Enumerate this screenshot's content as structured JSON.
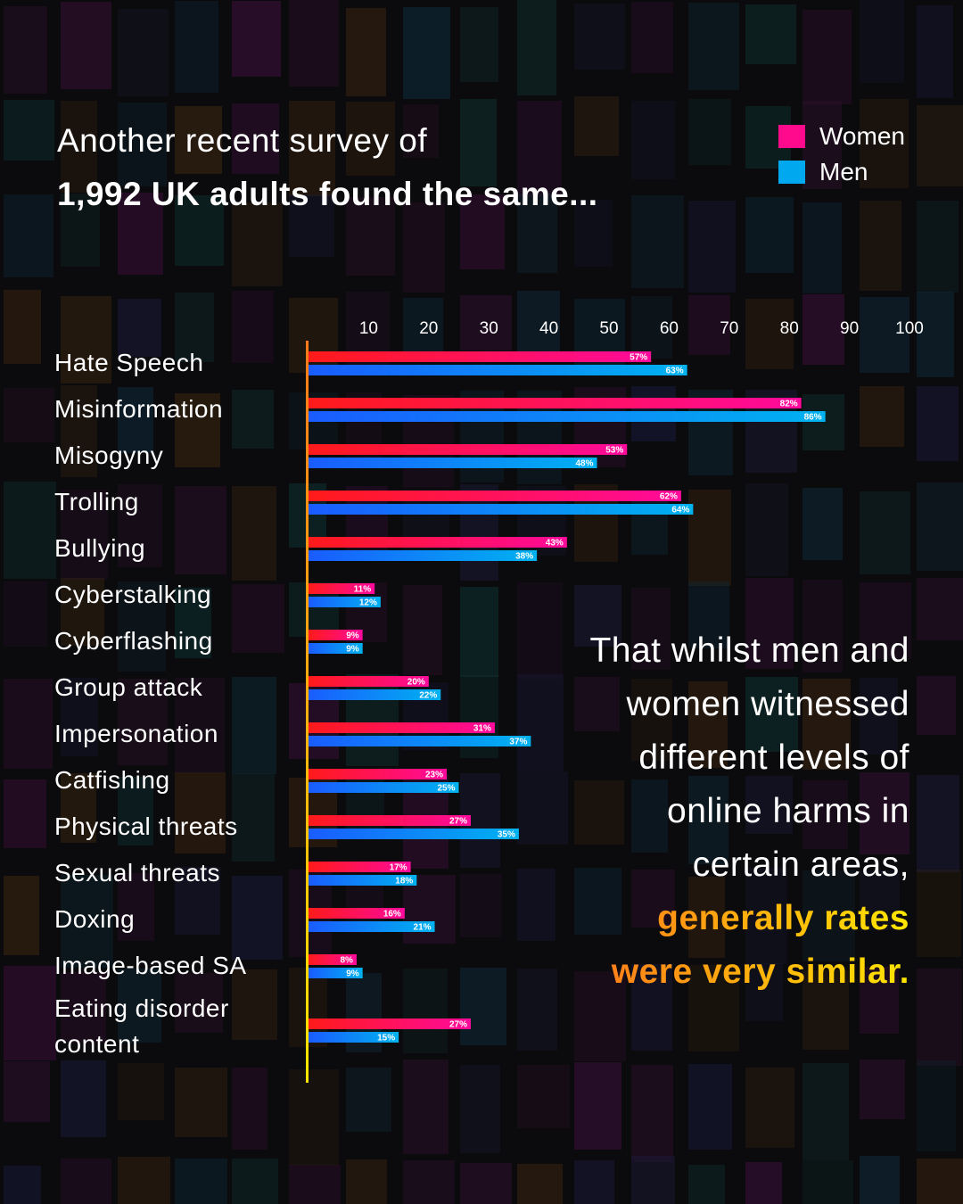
{
  "headline": {
    "line1": "Another recent survey of",
    "line2": "1,992 UK adults found the same..."
  },
  "legend": [
    {
      "label": "Women",
      "color": "#ff0a8c"
    },
    {
      "label": "Men",
      "color": "#00a8f0"
    }
  ],
  "callout": {
    "lines": [
      "That whilst men and",
      "women witnessed",
      "different levels of",
      "online harms in",
      "certain areas,"
    ],
    "highlight_lines": [
      "generally rates",
      "were very similar."
    ]
  },
  "chart_data": {
    "type": "bar",
    "orientation": "horizontal",
    "x_ticks": [
      "10",
      "20",
      "30",
      "40",
      "50",
      "60",
      "70",
      "80",
      "90",
      "100"
    ],
    "xlim": [
      0,
      100
    ],
    "categories": [
      "Hate Speech",
      "Misinformation",
      "Misogyny",
      "Trolling",
      "Bullying",
      "Cyberstalking",
      "Cyberflashing",
      "Group attack",
      "Impersonation",
      "Catfishing",
      "Physical threats",
      "Sexual threats",
      "Doxing",
      "Image-based SA",
      "Eating disorder content"
    ],
    "series": [
      {
        "name": "Women",
        "color": "#ff0a8c",
        "values": [
          57,
          82,
          53,
          62,
          43,
          11,
          9,
          20,
          31,
          23,
          27,
          17,
          16,
          8,
          27
        ],
        "value_labels": [
          "57%",
          "82%",
          "53%",
          "62%",
          "43%",
          "11%",
          "9%",
          "20%",
          "31%",
          "23%",
          "27%",
          "17%",
          "16%",
          "8%",
          "27%"
        ]
      },
      {
        "name": "Men",
        "color": "#00a8f0",
        "values": [
          63,
          86,
          48,
          64,
          38,
          12,
          9,
          22,
          37,
          25,
          35,
          18,
          21,
          9,
          15
        ],
        "value_labels": [
          "63%",
          "86%",
          "48%",
          "64%",
          "38%",
          "12%",
          "9%",
          "22%",
          "37%",
          "25%",
          "35%",
          "18%",
          "21%",
          "9%",
          "15%"
        ]
      }
    ],
    "legend_position": "top-right",
    "grid": false
  }
}
